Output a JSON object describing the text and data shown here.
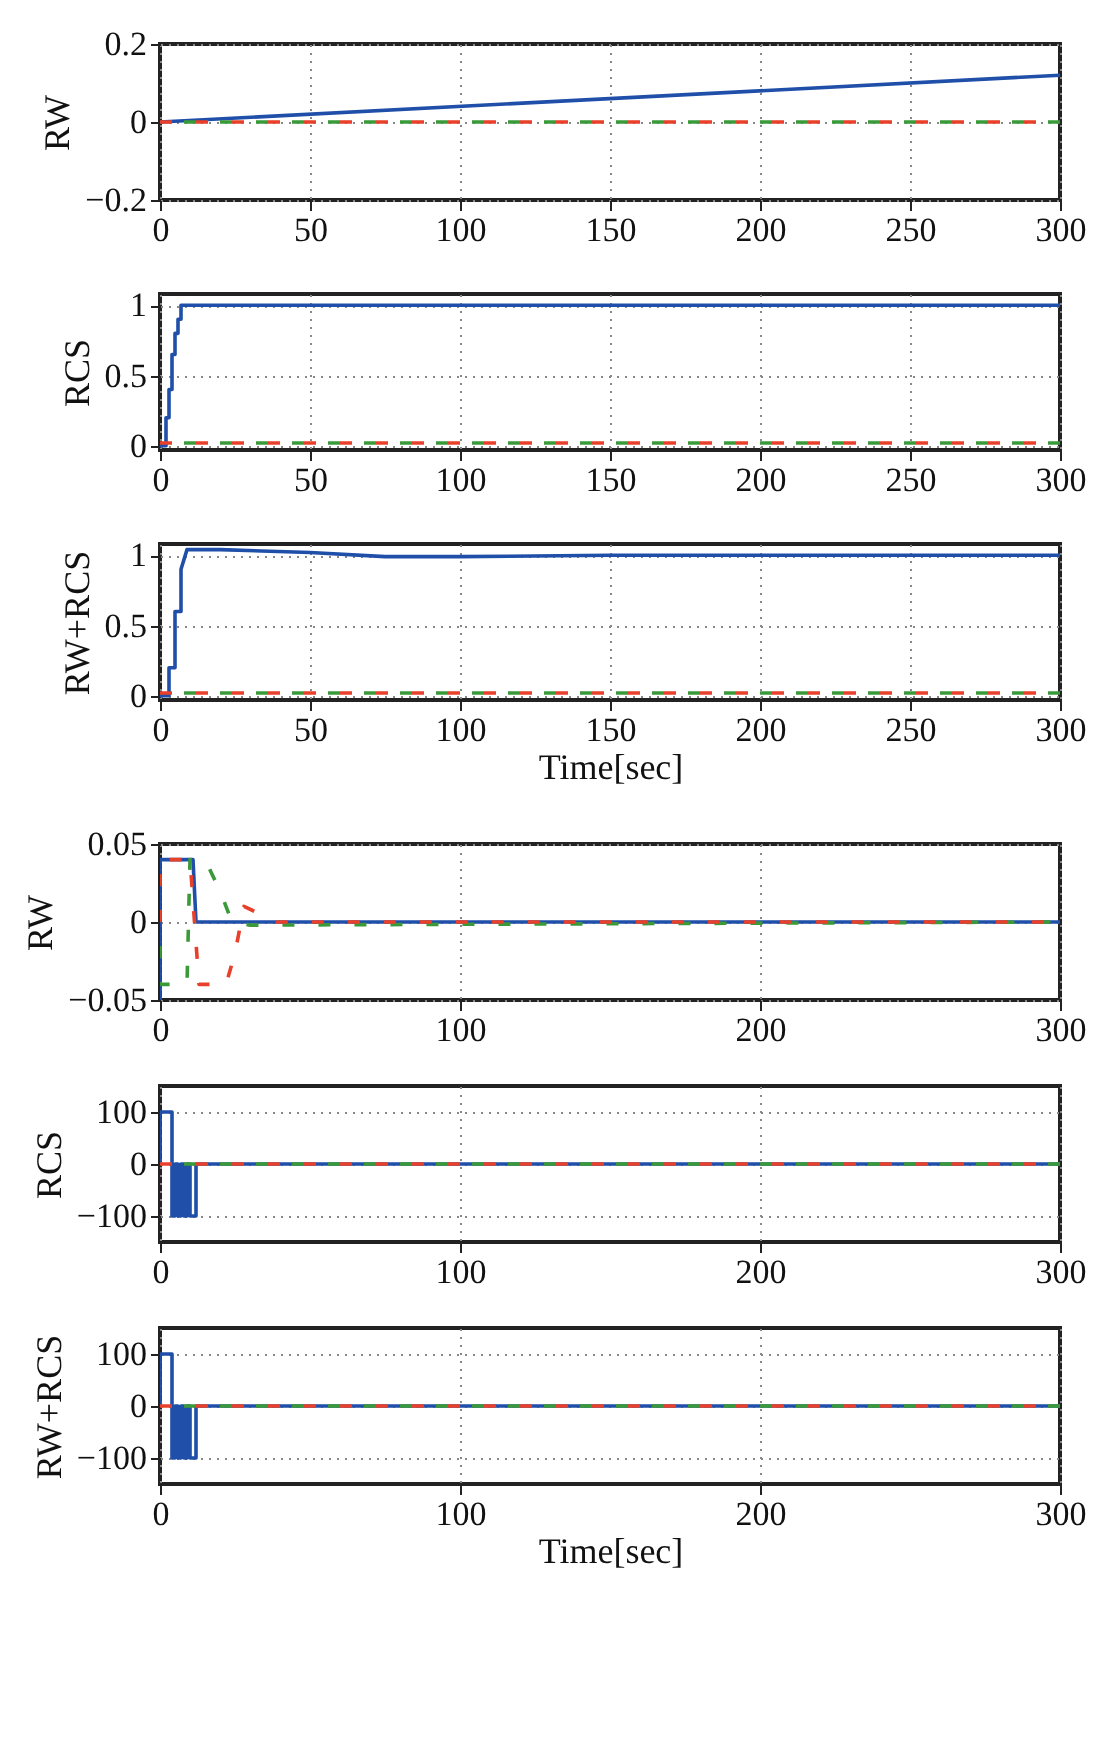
{
  "chart_data": [
    {
      "type": "line",
      "ylabel": "RW",
      "xlim": [
        0,
        300
      ],
      "xticks": [
        0,
        50,
        100,
        150,
        200,
        250,
        300
      ],
      "ylim": [
        -0.2,
        0.2
      ],
      "yticks": [
        -0.2,
        0,
        0.2
      ],
      "grid": true,
      "legend": false,
      "series": [
        {
          "color": "#1f4fa8",
          "line_style": "solid",
          "x": [
            0,
            300
          ],
          "values": [
            0,
            0.12
          ]
        },
        {
          "color": "#3a9a3a",
          "line_style": "dashed",
          "x": [
            0,
            300
          ],
          "values": [
            0,
            0
          ]
        },
        {
          "color": "#e8402a",
          "line_style": "dashed",
          "x": [
            0,
            300
          ],
          "values": [
            0,
            0
          ]
        }
      ]
    },
    {
      "type": "line",
      "ylabel": "RCS",
      "xlim": [
        0,
        300
      ],
      "xticks": [
        0,
        50,
        100,
        150,
        200,
        250,
        300
      ],
      "ylim": [
        -0.03,
        1.08
      ],
      "yticks": [
        0,
        0.5,
        1
      ],
      "grid": true,
      "legend": false,
      "series": [
        {
          "color": "#1f4fa8",
          "line_style": "solid",
          "x": [
            0,
            2,
            2,
            3,
            3,
            4,
            4,
            5,
            5,
            6,
            6,
            7,
            7,
            8,
            300
          ],
          "values": [
            0,
            0,
            0.2,
            0.2,
            0.4,
            0.4,
            0.65,
            0.65,
            0.8,
            0.8,
            0.9,
            0.9,
            1,
            1,
            1
          ]
        },
        {
          "color": "#3a9a3a",
          "line_style": "dashed",
          "x": [
            0,
            300
          ],
          "values": [
            0.02,
            0.02
          ]
        },
        {
          "color": "#e8402a",
          "line_style": "dashed",
          "x": [
            0,
            300
          ],
          "values": [
            0.02,
            0.02
          ]
        }
      ]
    },
    {
      "type": "line",
      "ylabel": "RW+RCS",
      "xlabel": "Time[sec]",
      "xlim": [
        0,
        300
      ],
      "xticks": [
        0,
        50,
        100,
        150,
        200,
        250,
        300
      ],
      "ylim": [
        -0.03,
        1.08
      ],
      "yticks": [
        0,
        0.5,
        1
      ],
      "grid": true,
      "legend": false,
      "series": [
        {
          "color": "#1f4fa8",
          "line_style": "solid",
          "x": [
            0,
            3,
            3,
            5,
            5,
            7,
            7,
            9,
            20,
            50,
            75,
            100,
            150,
            300
          ],
          "values": [
            0,
            0,
            0.2,
            0.2,
            0.6,
            0.6,
            0.9,
            1.04,
            1.04,
            1.02,
            0.99,
            0.99,
            1,
            1
          ]
        },
        {
          "color": "#3a9a3a",
          "line_style": "dashed",
          "x": [
            0,
            300
          ],
          "values": [
            0.02,
            0.02
          ]
        },
        {
          "color": "#e8402a",
          "line_style": "dashed",
          "x": [
            0,
            300
          ],
          "values": [
            0.02,
            0.02
          ]
        }
      ]
    },
    {
      "type": "line",
      "ylabel": "RW",
      "xlim": [
        0,
        300
      ],
      "xticks": [
        0,
        100,
        200,
        300
      ],
      "ylim": [
        -0.05,
        0.05
      ],
      "yticks": [
        -0.05,
        0,
        0.05
      ],
      "grid": true,
      "legend": false,
      "series": [
        {
          "color": "#1f4fa8",
          "line_style": "solid",
          "x": [
            0,
            0,
            11,
            12,
            300
          ],
          "values": [
            -0.05,
            0.04,
            0.04,
            0,
            0
          ]
        },
        {
          "color": "#3a9a3a",
          "line_style": "dashed",
          "x": [
            0,
            0,
            9,
            10,
            15,
            20,
            24,
            30,
            300
          ],
          "values": [
            0,
            -0.04,
            -0.04,
            0.04,
            0.04,
            0.02,
            0,
            -0.002,
            0
          ]
        },
        {
          "color": "#e8402a",
          "line_style": "dashed",
          "x": [
            0,
            0,
            10,
            13,
            22,
            25,
            28,
            39,
            300
          ],
          "values": [
            0,
            0.04,
            0.04,
            -0.04,
            -0.04,
            -0.02,
            0.01,
            0,
            0
          ]
        }
      ]
    },
    {
      "type": "line",
      "ylabel": "RCS",
      "xlim": [
        0,
        300
      ],
      "xticks": [
        0,
        100,
        200,
        300
      ],
      "ylim": [
        -150,
        150
      ],
      "yticks": [
        -100,
        0,
        100
      ],
      "grid": true,
      "legend": false,
      "series": [
        {
          "color": "#1f4fa8",
          "line_style": "solid",
          "x": [
            0,
            0,
            4,
            4,
            5,
            5,
            6,
            6,
            7,
            7,
            8,
            8,
            9,
            9,
            10,
            10,
            12,
            12,
            300
          ],
          "values": [
            0,
            100,
            100,
            -100,
            -100,
            0,
            0,
            -100,
            -100,
            0,
            0,
            -100,
            -100,
            0,
            0,
            -100,
            -100,
            0,
            0
          ]
        },
        {
          "color": "#3a9a3a",
          "line_style": "dashed",
          "x": [
            0,
            300
          ],
          "values": [
            0,
            0
          ]
        },
        {
          "color": "#e8402a",
          "line_style": "dashed",
          "x": [
            0,
            300
          ],
          "values": [
            0,
            0
          ]
        }
      ]
    },
    {
      "type": "line",
      "ylabel": "RW+RCS",
      "xlabel": "Time[sec]",
      "xlim": [
        0,
        300
      ],
      "xticks": [
        0,
        100,
        200,
        300
      ],
      "ylim": [
        -150,
        150
      ],
      "yticks": [
        -100,
        0,
        100
      ],
      "grid": true,
      "legend": false,
      "series": [
        {
          "color": "#1f4fa8",
          "line_style": "solid",
          "x": [
            0,
            0,
            4,
            4,
            5,
            5,
            6,
            6,
            7,
            7,
            8,
            8,
            9,
            9,
            10,
            10,
            12,
            12,
            300
          ],
          "values": [
            0,
            100,
            100,
            -100,
            -100,
            0,
            0,
            -100,
            -100,
            0,
            0,
            -100,
            -100,
            0,
            0,
            -100,
            -100,
            0,
            0
          ]
        },
        {
          "color": "#3a9a3a",
          "line_style": "dashed",
          "x": [
            0,
            300
          ],
          "values": [
            0,
            0
          ]
        },
        {
          "color": "#e8402a",
          "line_style": "dashed",
          "x": [
            0,
            300
          ],
          "values": [
            0,
            0
          ]
        }
      ]
    }
  ]
}
